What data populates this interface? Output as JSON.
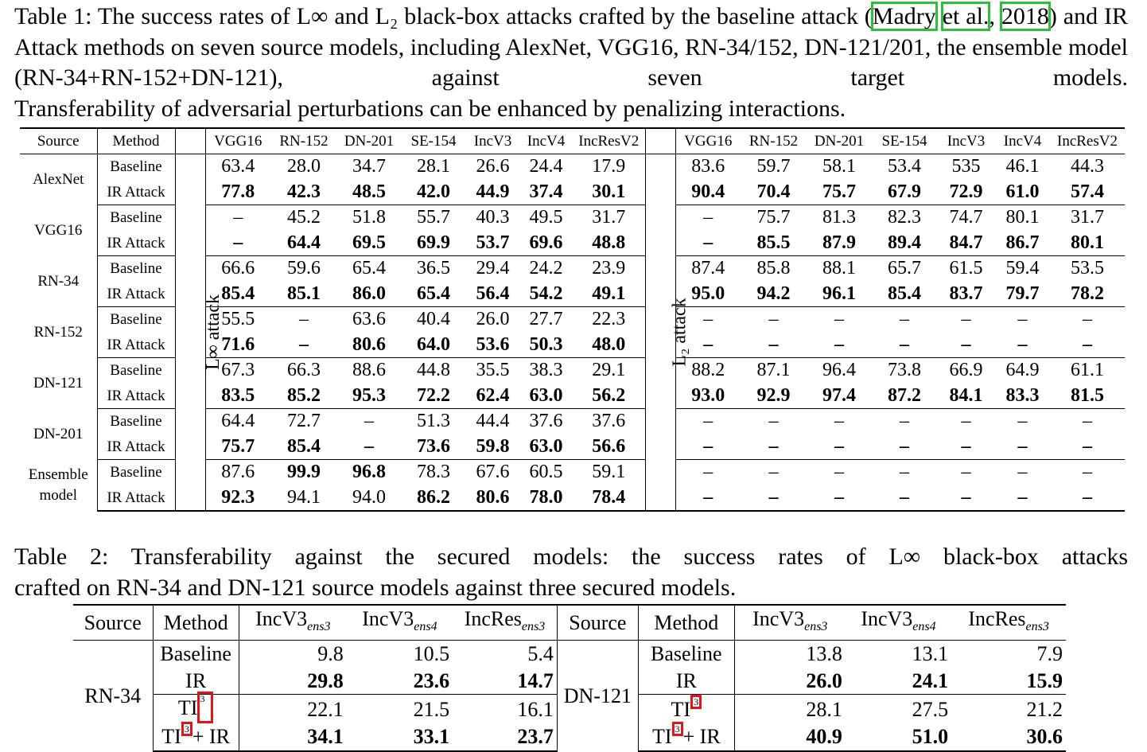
{
  "caption1": {
    "part1": "Table 1: The success rates of L∞ and L₂ black-box attacks crafted by the baseline attack (",
    "cite_a": "Madry",
    "cite_b": "et al.",
    "comma": ", ",
    "cite_year": "2018",
    "part2": ") and IR Attack methods on seven source models, including AlexNet, VGG16, RN-34/152, DN-121/201, the ensemble model (RN-34+RN-152+DN-121), against seven target models.",
    "last": "Transferability of adversarial perturbations can be enhanced by penalizing interactions."
  },
  "table1": {
    "headers": {
      "source": "Source",
      "method": "Method",
      "linf_label": "L∞ attack",
      "l2_label": "L₂ attack",
      "targets": [
        "VGG16",
        "RN-152",
        "DN-201",
        "SE-154",
        "IncV3",
        "IncV4",
        "IncResV2"
      ]
    },
    "methods": [
      "Baseline",
      "IR Attack"
    ],
    "groups": [
      {
        "source": "AlexNet",
        "baseline": {
          "linf": [
            "63.4",
            "28.0",
            "34.7",
            "28.1",
            "26.6",
            "24.4",
            "17.9"
          ],
          "l2": [
            "83.6",
            "59.7",
            "58.1",
            "53.4",
            "535",
            "46.1",
            "44.3"
          ]
        },
        "ir": {
          "linf": [
            "77.8",
            "42.3",
            "48.5",
            "42.0",
            "44.9",
            "37.4",
            "30.1"
          ],
          "l2": [
            "90.4",
            "70.4",
            "75.7",
            "67.9",
            "72.9",
            "61.0",
            "57.4"
          ]
        }
      },
      {
        "source": "VGG16",
        "baseline": {
          "linf": [
            "–",
            "45.2",
            "51.8",
            "55.7",
            "40.3",
            "49.5",
            "31.7"
          ],
          "l2": [
            "–",
            "75.7",
            "81.3",
            "82.3",
            "74.7",
            "80.1",
            "31.7"
          ]
        },
        "ir": {
          "linf": [
            "–",
            "64.4",
            "69.5",
            "69.9",
            "53.7",
            "69.6",
            "48.8"
          ],
          "l2": [
            "–",
            "85.5",
            "87.9",
            "89.4",
            "84.7",
            "86.7",
            "80.1"
          ]
        }
      },
      {
        "source": "RN-34",
        "baseline": {
          "linf": [
            "66.6",
            "59.6",
            "65.4",
            "36.5",
            "29.4",
            "24.2",
            "23.9"
          ],
          "l2": [
            "87.4",
            "85.8",
            "88.1",
            "65.7",
            "61.5",
            "59.4",
            "53.5"
          ]
        },
        "ir": {
          "linf": [
            "85.4",
            "85.1",
            "86.0",
            "65.4",
            "56.4",
            "54.2",
            "49.1"
          ],
          "l2": [
            "95.0",
            "94.2",
            "96.1",
            "85.4",
            "83.7",
            "79.7",
            "78.2"
          ]
        }
      },
      {
        "source": "RN-152",
        "baseline": {
          "linf": [
            "55.5",
            "–",
            "63.6",
            "40.4",
            "26.0",
            "27.7",
            "22.3"
          ],
          "l2": [
            "–",
            "–",
            "–",
            "–",
            "–",
            "–",
            "–"
          ]
        },
        "ir": {
          "linf": [
            "71.6",
            "–",
            "80.6",
            "64.0",
            "53.6",
            "50.3",
            "48.0"
          ],
          "l2": [
            "–",
            "–",
            "–",
            "–",
            "–",
            "–",
            "–"
          ]
        }
      },
      {
        "source": "DN-121",
        "baseline": {
          "linf": [
            "67.3",
            "66.3",
            "88.6",
            "44.8",
            "35.5",
            "38.3",
            "29.1"
          ],
          "l2": [
            "88.2",
            "87.1",
            "96.4",
            "73.8",
            "66.9",
            "64.9",
            "61.1"
          ]
        },
        "ir": {
          "linf": [
            "83.5",
            "85.2",
            "95.3",
            "72.2",
            "62.4",
            "63.0",
            "56.2"
          ],
          "l2": [
            "93.0",
            "92.9",
            "97.4",
            "87.2",
            "84.1",
            "83.3",
            "81.5"
          ]
        }
      },
      {
        "source": "DN-201",
        "baseline": {
          "linf": [
            "64.4",
            "72.7",
            "–",
            "51.3",
            "44.4",
            "37.6",
            "37.6"
          ],
          "l2": [
            "–",
            "–",
            "–",
            "–",
            "–",
            "–",
            "–"
          ]
        },
        "ir": {
          "linf": [
            "75.7",
            "85.4",
            "–",
            "73.6",
            "59.8",
            "63.0",
            "56.6"
          ],
          "l2": [
            "–",
            "–",
            "–",
            "–",
            "–",
            "–",
            "–"
          ]
        }
      },
      {
        "source_line1": "Ensemble",
        "source_line2": "model",
        "baseline": {
          "linf": [
            "87.6",
            "99.9",
            "96.8",
            "78.3",
            "67.6",
            "60.5",
            "59.1"
          ],
          "l2": [
            "–",
            "–",
            "–",
            "–",
            "–",
            "–",
            "–"
          ]
        },
        "ir": {
          "linf": [
            "92.3",
            "94.1",
            "94.0",
            "86.2",
            "80.6",
            "78.0",
            "78.4"
          ],
          "l2": [
            "–",
            "–",
            "–",
            "–",
            "–",
            "–",
            "–"
          ]
        }
      }
    ]
  },
  "caption2": {
    "line1": "Table 2: Transferability against the secured models: the success rates of L∞ black-box attacks",
    "line2": "crafted on RN-34 and DN-121 source models against three secured models."
  },
  "table2": {
    "headers": {
      "source": "Source",
      "method": "Method",
      "c1": "IncV3",
      "c1sub": "ens3",
      "c2": "IncV3",
      "c2sub": "ens4",
      "c3": "IncRes",
      "c3sub": "ens3"
    },
    "left_source": "RN-34",
    "right_source": "DN-121",
    "ref": "3",
    "methods": [
      "Baseline",
      "IR",
      "TI",
      "+ IR"
    ],
    "left": [
      [
        "9.8",
        "10.5",
        "5.4"
      ],
      [
        "29.8",
        "23.6",
        "14.7"
      ],
      [
        "22.1",
        "21.5",
        "16.1"
      ],
      [
        "34.1",
        "33.1",
        "23.7"
      ]
    ],
    "right": [
      [
        "13.8",
        "13.1",
        "7.9"
      ],
      [
        "26.0",
        "24.1",
        "15.9"
      ],
      [
        "28.1",
        "27.5",
        "21.2"
      ],
      [
        "40.9",
        "51.0",
        "30.6"
      ]
    ]
  }
}
